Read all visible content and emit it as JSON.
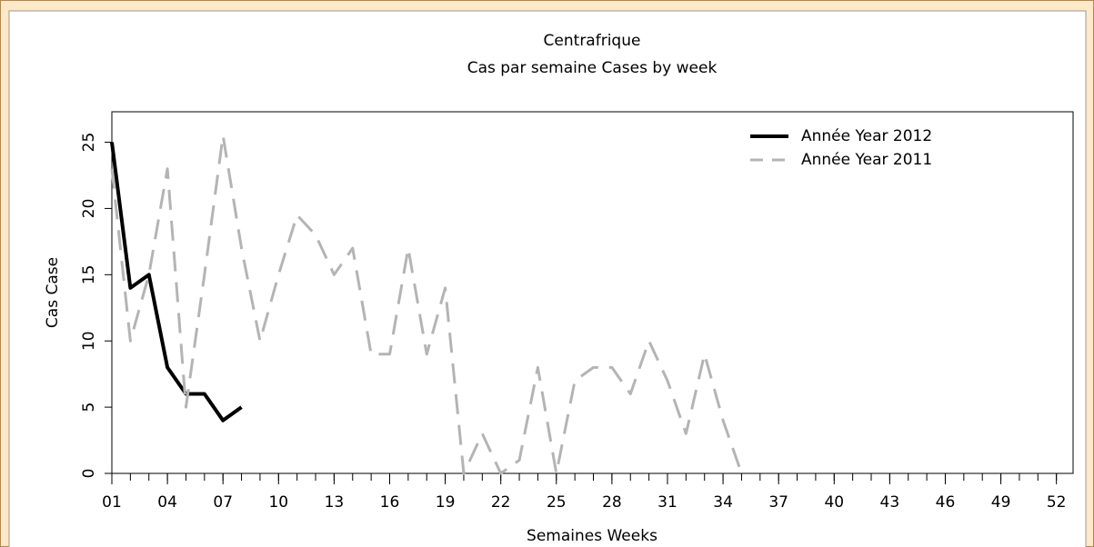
{
  "chart_data": {
    "type": "line",
    "title": "Centrafrique",
    "subtitle": "Cas par semaine Cases by week",
    "x_label": "Semaines Weeks",
    "y_label": "Cas Case",
    "xlim": [
      1,
      52.9
    ],
    "ylim": [
      0,
      27.3
    ],
    "xticks": [
      {
        "value": 1,
        "label": "01"
      },
      {
        "value": 4,
        "label": "04"
      },
      {
        "value": 7,
        "label": "07"
      },
      10,
      13,
      16,
      19,
      22,
      25,
      28,
      31,
      34,
      37,
      40,
      43,
      46,
      49,
      52
    ],
    "xticks_minor": [
      1,
      2,
      3,
      4,
      5,
      6,
      7,
      8,
      9,
      10,
      11,
      12,
      13,
      14,
      15,
      16,
      17,
      18,
      19,
      20,
      21,
      22,
      23,
      24,
      25,
      26,
      27,
      28,
      29,
      30,
      31,
      32,
      33,
      34,
      35,
      36,
      37,
      38,
      39,
      40,
      41,
      42,
      43,
      44,
      45,
      46,
      47,
      48,
      49,
      50,
      51,
      52
    ],
    "yticks": [
      0,
      5,
      10,
      15,
      20,
      25
    ],
    "legend": "upper right",
    "series": [
      {
        "name": "Année Year 2012",
        "color": "#000000",
        "dash": false,
        "x": [
          1,
          2,
          3,
          4,
          5,
          6,
          7,
          8
        ],
        "values": [
          25,
          14,
          15,
          8,
          6,
          6,
          4,
          5
        ]
      },
      {
        "name": "Année Year 2011",
        "color": "#b4b4b4",
        "dash": true,
        "x": [
          1,
          2,
          3,
          4,
          5,
          6,
          7,
          8,
          9,
          10,
          11,
          12,
          13,
          14,
          15,
          16,
          17,
          18,
          19,
          20,
          21,
          22,
          23,
          24,
          25,
          26,
          27,
          28,
          29,
          30,
          31,
          32,
          33,
          34,
          35
        ],
        "values": [
          23,
          10,
          15,
          23,
          5,
          15,
          25.5,
          17,
          10,
          15,
          19.5,
          18,
          15,
          17,
          9,
          9,
          17,
          9,
          14,
          0,
          3,
          0,
          1,
          8,
          0,
          7,
          8,
          8,
          6,
          10,
          7,
          3,
          9,
          4,
          0
        ]
      }
    ]
  }
}
